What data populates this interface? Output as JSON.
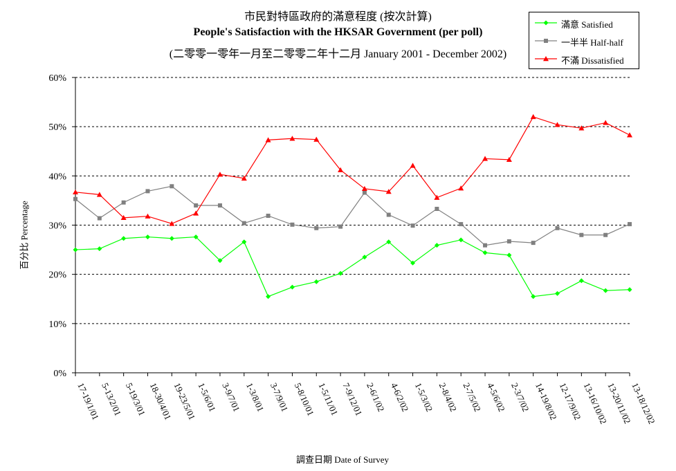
{
  "chart_data": {
    "type": "line",
    "title": "市民對特區政府的滿意程度 (按次計算)",
    "subtitle": "People's Satisfaction with the HKSAR Government  (per poll)",
    "subtitle2": "(二零零一零年一月至二零零二年十二月 January 2001 - December 2002)",
    "xlabel": "調查日期 Date of Survey",
    "ylabel": "百分比 Percentage",
    "ylim": [
      0,
      60
    ],
    "yticks": [
      "0%",
      "10%",
      "20%",
      "30%",
      "40%",
      "50%",
      "60%"
    ],
    "grid": "horizontal dashed",
    "legend_position": "top-right",
    "categories": [
      "17-19/1/01",
      "5-13/2/01",
      "5-19/3/01",
      "18-30/4/01",
      "19-23/5/01",
      "1-5/6/01",
      "3-9/7/01",
      "1-3/8/01",
      "3-7/9/01",
      "5-8/10/01",
      "1-5/11/01",
      "7-9/12/01",
      "2-6/1/02",
      "4-6/2/02",
      "1-5/3/02",
      "2-8/4/02",
      "2-7/5/02",
      "4-5/6/02",
      "2-3/7/02",
      "14-19/8/02",
      "12-17/9/02",
      "13-16/10/02",
      "13-20/11/02",
      "13-18/12/02"
    ],
    "series": [
      {
        "name": "滿意 Satisfied",
        "color": "#00ff00",
        "marker": "diamond",
        "values": [
          25.0,
          25.2,
          27.3,
          27.6,
          27.3,
          27.6,
          22.8,
          26.6,
          15.5,
          17.4,
          18.5,
          20.2,
          23.5,
          26.6,
          22.3,
          25.9,
          27.0,
          24.4,
          23.9,
          15.5,
          16.1,
          18.7,
          16.7,
          16.9
        ]
      },
      {
        "name": "一半半 Half-half",
        "color": "#808080",
        "marker": "square",
        "values": [
          35.3,
          31.4,
          34.6,
          36.9,
          37.9,
          34.0,
          34.0,
          30.4,
          31.9,
          30.1,
          29.4,
          29.7,
          36.6,
          32.1,
          29.9,
          33.3,
          30.2,
          25.9,
          26.7,
          26.4,
          29.4,
          28.0,
          28.0,
          30.2
        ]
      },
      {
        "name": "不滿 Dissatisfied",
        "color": "#ff0000",
        "marker": "triangle",
        "values": [
          36.7,
          36.2,
          31.5,
          31.8,
          30.3,
          32.4,
          40.3,
          39.5,
          47.3,
          47.6,
          47.4,
          41.2,
          37.4,
          36.8,
          42.1,
          35.6,
          37.5,
          43.5,
          43.3,
          52.0,
          50.4,
          49.7,
          50.8,
          48.3
        ]
      }
    ]
  }
}
